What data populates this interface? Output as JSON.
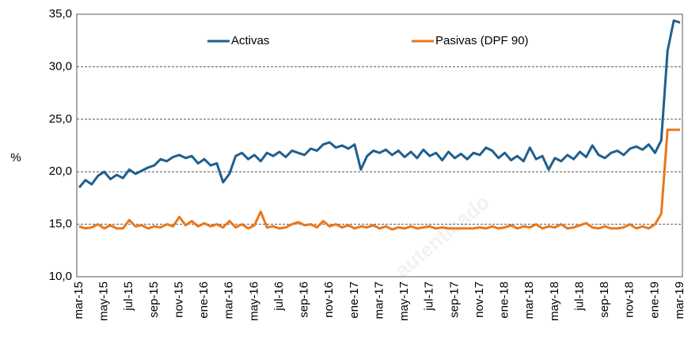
{
  "chart_data": {
    "type": "line",
    "y_label": "%",
    "watermark": "autenticado",
    "categories": [
      "mar-15",
      null,
      null,
      null,
      "may-15",
      null,
      null,
      null,
      "jul-15",
      null,
      null,
      null,
      "sep-15",
      null,
      null,
      null,
      "nov-15",
      null,
      null,
      null,
      "ene-16",
      null,
      null,
      null,
      "mar-16",
      null,
      null,
      null,
      "may-16",
      null,
      null,
      null,
      "jul-16",
      null,
      null,
      null,
      "sep-16",
      null,
      null,
      null,
      "nov-16",
      null,
      null,
      null,
      "ene-17",
      null,
      null,
      null,
      "mar-17",
      null,
      null,
      null,
      "may-17",
      null,
      null,
      null,
      "jul-17",
      null,
      null,
      null,
      "sep-17",
      null,
      null,
      null,
      "nov-17",
      null,
      null,
      null,
      "ene-18",
      null,
      null,
      null,
      "mar-18",
      null,
      null,
      null,
      "may-18",
      null,
      null,
      null,
      "jul-18",
      null,
      null,
      null,
      "sep-18",
      null,
      null,
      null,
      "nov-18",
      null,
      null,
      null,
      "ene-19",
      null,
      null,
      null,
      "mar-19"
    ],
    "series": [
      {
        "name": "Activas",
        "color": "#1f5f8f",
        "values": [
          18.5,
          19.2,
          18.8,
          19.6,
          20.0,
          19.3,
          19.7,
          19.4,
          20.2,
          19.8,
          20.1,
          20.4,
          20.6,
          21.2,
          21.0,
          21.4,
          21.6,
          21.3,
          21.5,
          20.8,
          21.2,
          20.6,
          20.8,
          19.0,
          19.8,
          21.5,
          21.8,
          21.2,
          21.6,
          21.0,
          21.8,
          21.5,
          21.9,
          21.4,
          22.0,
          21.8,
          21.6,
          22.2,
          22.0,
          22.6,
          22.8,
          22.3,
          22.5,
          22.2,
          22.6,
          20.2,
          21.5,
          22.0,
          21.8,
          22.1,
          21.6,
          22.0,
          21.4,
          21.9,
          21.3,
          22.1,
          21.5,
          21.8,
          21.1,
          21.9,
          21.3,
          21.7,
          21.2,
          21.8,
          21.6,
          22.3,
          22.0,
          21.3,
          21.8,
          21.1,
          21.5,
          21.0,
          22.3,
          21.2,
          21.5,
          20.2,
          21.3,
          21.0,
          21.6,
          21.2,
          21.9,
          21.4,
          22.5,
          21.6,
          21.3,
          21.8,
          22.0,
          21.6,
          22.2,
          22.4,
          22.1,
          22.6,
          21.8,
          23.0,
          31.5,
          34.4,
          34.2
        ]
      },
      {
        "name": "Pasivas (DPF 90)",
        "color": "#e8781e",
        "values": [
          14.8,
          14.6,
          14.7,
          15.0,
          14.6,
          14.9,
          14.6,
          14.6,
          15.4,
          14.8,
          14.9,
          14.6,
          14.8,
          14.7,
          15.0,
          14.8,
          15.7,
          14.9,
          15.3,
          14.8,
          15.1,
          14.8,
          15.0,
          14.7,
          15.3,
          14.7,
          15.0,
          14.6,
          14.9,
          16.2,
          14.7,
          14.8,
          14.6,
          14.7,
          15.0,
          15.2,
          14.9,
          15.0,
          14.7,
          15.3,
          14.8,
          15.0,
          14.7,
          14.9,
          14.6,
          14.8,
          14.7,
          14.9,
          14.6,
          14.8,
          14.5,
          14.7,
          14.6,
          14.8,
          14.6,
          14.7,
          14.8,
          14.6,
          14.7,
          14.6,
          14.6,
          14.6,
          14.6,
          14.6,
          14.7,
          14.6,
          14.8,
          14.6,
          14.7,
          14.9,
          14.6,
          14.8,
          14.7,
          15.0,
          14.6,
          14.8,
          14.7,
          15.0,
          14.6,
          14.7,
          14.9,
          15.1,
          14.7,
          14.6,
          14.8,
          14.6,
          14.6,
          14.7,
          15.0,
          14.6,
          14.8,
          14.6,
          15.0,
          16.0,
          24.0,
          24.0,
          24.0
        ]
      }
    ],
    "ylim": [
      10,
      35
    ],
    "yticks": [
      {
        "value": 10,
        "label": "10,0"
      },
      {
        "value": 15,
        "label": "15,0"
      },
      {
        "value": 20,
        "label": "20,0"
      },
      {
        "value": 25,
        "label": "25,0"
      },
      {
        "value": 30,
        "label": "30,0"
      },
      {
        "value": 35,
        "label": "35,0"
      }
    ],
    "grid": true,
    "legend": "top"
  }
}
